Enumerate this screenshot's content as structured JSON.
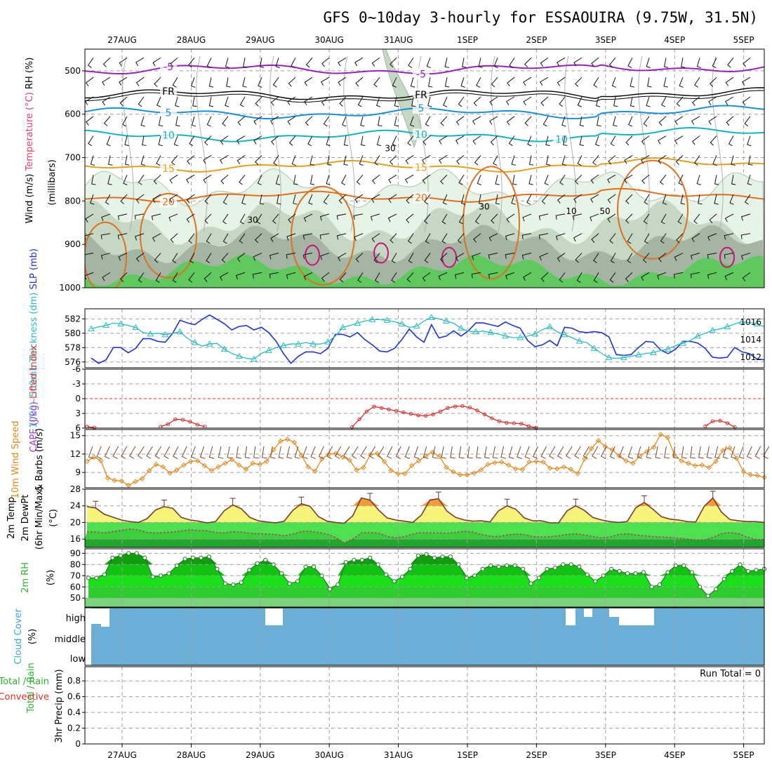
{
  "chart_data": {
    "type": "line",
    "title": "GFS 0~10day 3-hourly for ESSAOUIRA (9.75W, 31.5N)",
    "dates": [
      "27AUG",
      "28AUG",
      "29AUG",
      "30AUG",
      "31AUG",
      "1SEP",
      "2SEP",
      "3SEP",
      "4SEP",
      "5SEP"
    ],
    "panels": [
      {
        "id": "upper-air",
        "ylabel_parts": [
          {
            "text": "Wind (m/s)",
            "color": "#000000"
          },
          {
            "text": "Temperature (°C)",
            "color": "#e0406a"
          },
          {
            "text": "RH (%)",
            "color": "#000000"
          }
        ],
        "ylabel2": "(millibars)",
        "yticks": [
          "500",
          "600",
          "700",
          "800",
          "900",
          "1000"
        ],
        "ylim": [
          450,
          1000
        ],
        "isotherms": [
          {
            "label": "-5",
            "color": "#9922bb",
            "base_hpa": 497
          },
          {
            "label": "FR",
            "color": "#000000",
            "base_hpa": 555
          },
          {
            "label": "5",
            "color": "#1a8fd6",
            "base_hpa": 598
          },
          {
            "label": "10",
            "color": "#16b1c0",
            "base_hpa": 650
          },
          {
            "label": "15",
            "color": "#e0a020",
            "base_hpa": 720
          },
          {
            "label": "20",
            "color": "#e07020",
            "base_hpa": 790
          }
        ],
        "rh_labels": [
          "30",
          "30",
          "30",
          "50",
          "10"
        ]
      },
      {
        "id": "slp-thickness",
        "ylabel_parts": [
          {
            "text": "1000~500mb",
            "color": "#2bbbc0"
          },
          {
            "text": "Thickness (dm)",
            "color": "#2bbbc0"
          },
          {
            "text": "SLP (mb)",
            "color": "#2233cc"
          }
        ],
        "yticks_left": [
          "576",
          "578",
          "580",
          "582"
        ],
        "yticks_right": [
          "1012",
          "1014",
          "1016"
        ],
        "series": [
          {
            "name": "SLP (mb)",
            "color": "#1f33cc",
            "values": [
              1011.9,
              1011.3,
              1011.7,
              1013.1,
              1013.1,
              1012.5,
              1013.0,
              1014.1,
              1014.1,
              1013.8,
              1013.7,
              1014.7,
              1016.2,
              1015.9,
              1015.7,
              1016.3,
              1016.8,
              1016.3,
              1015.8,
              1015.1,
              1015.5,
              1015.6,
              1015.1,
              1015.4,
              1014.8,
              1013.8,
              1012.4,
              1011.3,
              1012.1,
              1012.6,
              1012.6,
              1012.4,
              1013.0,
              1014.6,
              1014.6,
              1014.3,
              1014.8,
              1014.0,
              1013.4,
              1012.7,
              1012.6,
              1013.0,
              1014.0,
              1015.2,
              1014.3,
              1013.7,
              1015.7,
              1014.2,
              1014.4,
              1015.0,
              1014.4,
              1015.0,
              1015.9,
              1015.9,
              1015.7,
              1015.5,
              1016.0,
              1015.6,
              1015.3,
              1013.9,
              1013.2,
              1013.4,
              1013.9,
              1013.3,
              1015.4,
              1015.3,
              1014.9,
              1014.8,
              1014.9,
              1014.8,
              1014.3,
              1012.3,
              1012.2,
              1012.3,
              1013.1,
              1013.8,
              1013.7,
              1012.8,
              1012.4,
              1012.9,
              1013.8,
              1013.8,
              1013.6,
              1013.0,
              1012.0,
              1011.9,
              1012.0,
              1013.1,
              1012.6,
              1012.4,
              1011.8,
              1011.7
            ]
          },
          {
            "name": "1000~500mb Thickness (dm)",
            "color": "#2bbbc0",
            "values": [
              580.6,
              580.9,
              581.1,
              581.4,
              581.3,
              581.1,
              580.8,
              580.1,
              579.9,
              580.0,
              579.8,
              580.0,
              580.2,
              579.3,
              578.7,
              578.2,
              578.5,
              578.6,
              577.8,
              577.2,
              576.8,
              576.5,
              576.4,
              577.2,
              577.6,
              578.0,
              578.3,
              578.5,
              578.5,
              578.7,
              578.5,
              578.5,
              578.8,
              579.6,
              580.8,
              581.1,
              581.4,
              581.7,
              581.9,
              581.9,
              581.8,
              581.6,
              581.3,
              580.8,
              581.0,
              581.7,
              582.2,
              582.0,
              581.7,
              581.4,
              580.7,
              580.3,
              580.2,
              580.3,
              580.1,
              579.9,
              579.6,
              579.4,
              579.4,
              579.6,
              579.9,
              580.5,
              580.9,
              580.2,
              579.8,
              579.4,
              578.9,
              578.7,
              577.9,
              577.2,
              576.6,
              576.5,
              576.6,
              576.8,
              577.0,
              577.2,
              577.3,
              577.6,
              577.8,
              578.3,
              578.6,
              579.0,
              579.6,
              580.0,
              580.4,
              580.6,
              580.9,
              581.3,
              581.6,
              581.5,
              581.3,
              580.9
            ]
          }
        ]
      },
      {
        "id": "cape-li",
        "ylabel_parts": [
          {
            "text": "CAPE (J/kg)",
            "color": "#a040d0"
          },
          {
            "text": "Lifted Index",
            "color": "#e03838"
          }
        ],
        "yticks": [
          "-6",
          "-3",
          "0",
          "3",
          "6"
        ],
        "ylim": [
          6,
          -6
        ],
        "series": [
          {
            "name": "Lifted Index",
            "color": "#d83030",
            "segments": [
              {
                "start": 0,
                "values": [
                  5.7,
                  5.9
                ]
              },
              {
                "start": 10,
                "values": [
                  5.7,
                  5.2,
                  4.2,
                  4.3,
                  4.7,
                  5.3,
                  5.7
                ]
              },
              {
                "start": 36,
                "values": [
                  5.8,
                  4.2,
                  2.6,
                  1.6,
                  1.9,
                  2.2,
                  2.5,
                  2.8,
                  3.1,
                  3.4,
                  3.5,
                  3.2,
                  2.6,
                  1.9,
                  1.6,
                  1.5,
                  1.8,
                  2.4,
                  3.2,
                  4.0,
                  4.6,
                  4.9,
                  5.0,
                  5.1,
                  5.6,
                  5.9
                ]
              },
              {
                "start": 84,
                "values": [
                  5.6,
                  4.6,
                  4.5,
                  5.0,
                  5.8
                ]
              }
            ]
          }
        ]
      },
      {
        "id": "wind10m",
        "ylabel_parts": [
          {
            "text": "10m Wind",
            "color": "#e08a20"
          },
          {
            "text": "Speed",
            "color": "#e08a20"
          },
          {
            "text": "& Barbs",
            "color": "#000000"
          },
          {
            "text": "(m/s)",
            "color": "#000000"
          }
        ],
        "yticks": [
          "9",
          "12",
          "15"
        ],
        "ylim": [
          6,
          16
        ],
        "series": [
          {
            "name": "10m Wind Speed",
            "color": "#e08a20",
            "values": [
              10.8,
              11.5,
              10.9,
              8.1,
              7.7,
              7.6,
              6.9,
              7.5,
              8.0,
              9.3,
              10.3,
              9.9,
              8.9,
              9.4,
              10.2,
              10.8,
              10.9,
              10.1,
              9.3,
              9.9,
              10.5,
              11.1,
              10.2,
              9.5,
              10.5,
              10.3,
              10.8,
              12.7,
              14.1,
              14.4,
              13.9,
              11.8,
              9.9,
              9.2,
              11.2,
              12.0,
              12.1,
              11.5,
              11.0,
              9.4,
              9.8,
              11.9,
              12.1,
              10.8,
              9.3,
              8.8,
              8.8,
              10.1,
              10.9,
              11.7,
              12.3,
              11.6,
              9.8,
              9.1,
              8.6,
              8.6,
              8.9,
              9.4,
              10.3,
              10.6,
              10.7,
              10.2,
              9.6,
              9.5,
              10.7,
              10.8,
              10.7,
              9.7,
              9.6,
              9.9,
              9.5,
              8.8,
              11.2,
              12.9,
              14.2,
              13.2,
              12.7,
              11.7,
              10.9,
              10.5,
              11.7,
              12.4,
              13.1,
              15.2,
              14.7,
              11.9,
              10.9,
              10.5,
              10.1,
              10.2,
              9.8,
              10.8,
              12.6,
              13.0,
              11.3,
              9.1,
              8.6,
              8.5,
              8.2
            ]
          }
        ]
      },
      {
        "id": "temp2m",
        "ylabel_parts": [
          {
            "text": "2m Temp",
            "color": "#000000"
          },
          {
            "text": "2m DewPt",
            "color": "#000000"
          },
          {
            "text": "(6hr Min/Max)",
            "color": "#000000"
          },
          {
            "text": "(°C)",
            "color": "#000000"
          }
        ],
        "yticks": [
          "16",
          "20",
          "24",
          "28"
        ],
        "ylim": [
          14,
          28
        ],
        "series": [
          {
            "name": "2m Temp",
            "color": "#7a3b2a",
            "values": [
              23.8,
              23.5,
              22.0,
              21.3,
              20.6,
              20.2,
              20.0,
              20.9,
              23.0,
              23.8,
              23.4,
              21.2,
              20.6,
              20.3,
              19.9,
              20.2,
              22.8,
              24.2,
              23.3,
              21.2,
              20.4,
              20.1,
              19.9,
              20.3,
              22.9,
              24.5,
              23.9,
              21.4,
              20.3,
              20.0,
              19.8,
              21.6,
              25.9,
              25.4,
              23.0,
              21.1,
              20.6,
              20.3,
              20.0,
              21.8,
              25.4,
              25.7,
              22.7,
              21.2,
              20.6,
              20.3,
              20.4,
              20.1,
              22.8,
              24.0,
              23.2,
              21.1,
              20.4,
              20.4,
              19.9,
              19.9,
              22.8,
              24.0,
              22.9,
              21.2,
              20.6,
              20.2,
              20.0,
              20.2,
              23.5,
              24.8,
              23.2,
              21.4,
              20.8,
              20.6,
              20.2,
              20.1,
              23.9,
              25.9,
              22.5,
              20.7,
              20.4,
              20.2,
              20.2,
              20.0
            ]
          },
          {
            "name": "2m DewPt",
            "color": "#a04060",
            "values": [
              17.8,
              17.7,
              17.5,
              17.8,
              18.1,
              18.4,
              18.2,
              17.6,
              17.5,
              17.6,
              17.7,
              18.0,
              18.2,
              18.1,
              18.0,
              17.6,
              17.5,
              17.8,
              17.7,
              17.4,
              17.3,
              17.2,
              17.1,
              16.8,
              17.2,
              17.8,
              17.9,
              17.6,
              17.2,
              16.4,
              15.1,
              16.0,
              17.5,
              17.6,
              17.4,
              16.7,
              16.3,
              16.6,
              17.2,
              17.6,
              17.5,
              17.5,
              17.4,
              17.6,
              17.9,
              17.7,
              17.1,
              16.7,
              16.6,
              17.0,
              17.2,
              17.1,
              16.6,
              16.5,
              16.6,
              16.8,
              17.1,
              17.3,
              17.0,
              16.6,
              16.3,
              16.5,
              17.1,
              17.3,
              17.0,
              16.8,
              16.6,
              16.5,
              16.4,
              16.2,
              16.0,
              15.8,
              15.8,
              16.4,
              17.3,
              17.6,
              17.3,
              16.5,
              15.9,
              15.9
            ]
          }
        ]
      },
      {
        "id": "rh2m",
        "ylabel_parts": [
          {
            "text": "2m RH",
            "color": "#30b030"
          },
          {
            "text": "(%)",
            "color": "#000000"
          }
        ],
        "yticks": [
          "50",
          "60",
          "70",
          "80",
          "90"
        ],
        "ylim": [
          40,
          94
        ],
        "series": [
          {
            "name": "2m RH",
            "color": "#1f7a1f",
            "values": [
              68,
              68,
              71,
              86,
              88,
              90,
              90,
              86,
              69,
              70,
              72,
              79,
              85,
              86,
              86,
              87,
              76,
              63,
              62,
              64,
              75,
              81,
              84,
              80,
              72,
              63,
              65,
              78,
              78,
              70,
              58,
              62,
              82,
              84,
              84,
              86,
              80,
              71,
              65,
              69,
              76,
              88,
              89,
              86,
              87,
              87,
              80,
              68,
              70,
              76,
              79,
              78,
              79,
              79,
              76,
              63,
              68,
              76,
              77,
              80,
              80,
              78,
              71,
              65,
              70,
              76,
              74,
              72,
              72,
              73,
              60,
              62,
              73,
              79,
              79,
              73,
              60,
              52,
              58,
              67,
              74,
              80,
              74,
              75,
              76
            ]
          }
        ]
      },
      {
        "id": "cloud",
        "ylabel_parts": [
          {
            "text": "Cloud Cover",
            "color": "#3ba3d8"
          },
          {
            "text": "(%)",
            "color": "#000000"
          }
        ],
        "level_labels": [
          "high",
          "middle",
          "low"
        ],
        "background": "#6baed6"
      },
      {
        "id": "precip",
        "ylabel_parts": [
          {
            "text": "3hr Precip (mm)",
            "color": "#000000"
          },
          {
            "text": "Total / Rain",
            "color": "#30b030"
          },
          {
            "text": "Convective",
            "color": "#e03030"
          }
        ],
        "yticks": [
          "0",
          "0.2",
          "0.4",
          "0.6",
          "0.8"
        ],
        "ylim": [
          0,
          0.98
        ],
        "run_total_label": "Run Total = 0"
      }
    ]
  }
}
